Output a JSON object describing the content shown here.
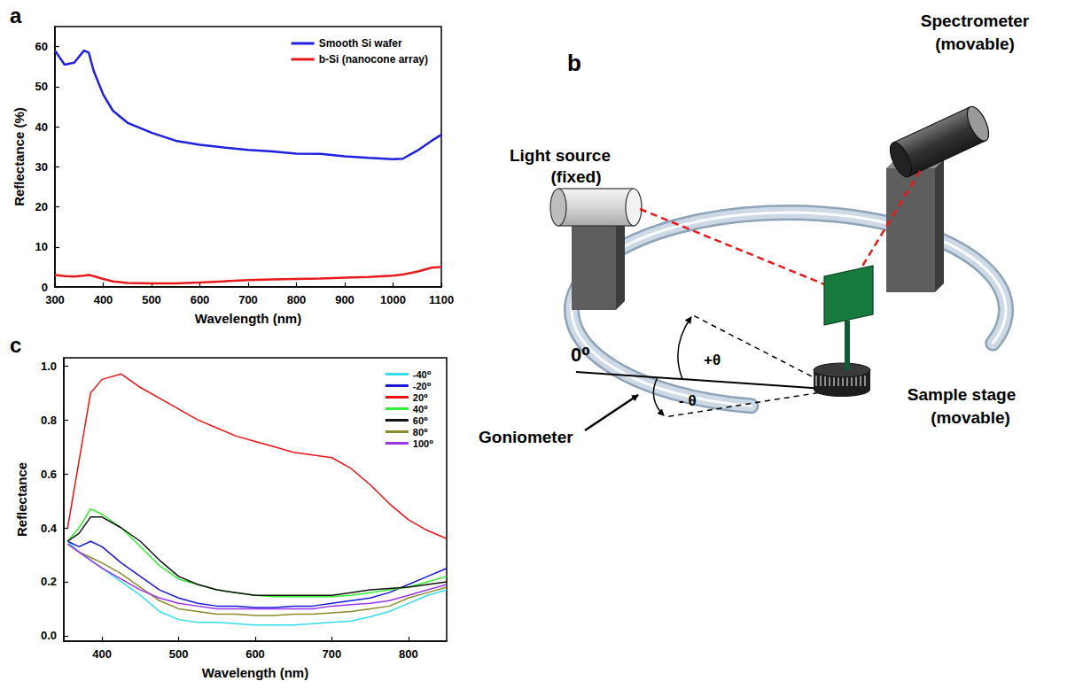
{
  "chart_data": [
    {
      "panel": "a",
      "type": "line",
      "x_label": "Wavelength (nm)",
      "y_label": "Reflectance (%)",
      "x": [
        300,
        320,
        340,
        360,
        370,
        380,
        400,
        420,
        450,
        500,
        550,
        600,
        650,
        700,
        750,
        800,
        850,
        900,
        950,
        1000,
        1020,
        1050,
        1080,
        1100
      ],
      "series": [
        {
          "name": "Smooth Si wafer",
          "color": "#1f1fe0",
          "values": [
            59,
            55.5,
            56,
            59,
            58.5,
            54,
            48,
            44,
            41,
            38.5,
            36.5,
            35.5,
            34.8,
            34.2,
            33.8,
            33.3,
            33.2,
            32.6,
            32.2,
            31.9,
            32,
            34,
            36.5,
            38
          ]
        },
        {
          "name": "b-Si (nanocone array)",
          "color": "#e8191b",
          "values": [
            3,
            2.7,
            2.6,
            2.8,
            3.0,
            2.7,
            2.0,
            1.4,
            1.0,
            0.9,
            0.9,
            1.1,
            1.4,
            1.7,
            1.9,
            2.0,
            2.1,
            2.3,
            2.5,
            2.8,
            3.1,
            3.8,
            4.8,
            5.0
          ]
        }
      ],
      "xlim": [
        300,
        1100
      ],
      "xticks": [
        300,
        400,
        500,
        600,
        700,
        800,
        900,
        1000,
        1100
      ],
      "ylim": [
        0,
        65
      ],
      "yticks": [
        0,
        10,
        20,
        30,
        40,
        50,
        60
      ],
      "grid": false,
      "legend": "upper right"
    },
    {
      "panel": "c",
      "type": "line",
      "x_label": "Wavelength (nm)",
      "y_label": "Reflectance",
      "x": [
        355,
        370,
        385,
        400,
        425,
        450,
        475,
        500,
        525,
        550,
        575,
        600,
        625,
        650,
        675,
        700,
        725,
        750,
        775,
        800,
        825,
        850
      ],
      "series": [
        {
          "name": "-40⁰",
          "color": "#33ddee",
          "values": [
            0.35,
            0.31,
            0.28,
            0.25,
            0.2,
            0.15,
            0.09,
            0.06,
            0.05,
            0.05,
            0.045,
            0.04,
            0.04,
            0.04,
            0.045,
            0.05,
            0.055,
            0.07,
            0.09,
            0.12,
            0.15,
            0.17
          ]
        },
        {
          "name": "-20⁰",
          "color": "#1818d8",
          "values": [
            0.35,
            0.33,
            0.35,
            0.33,
            0.27,
            0.22,
            0.17,
            0.14,
            0.12,
            0.11,
            0.11,
            0.105,
            0.105,
            0.11,
            0.11,
            0.12,
            0.13,
            0.14,
            0.16,
            0.19,
            0.22,
            0.25
          ]
        },
        {
          "name": "20⁰",
          "color": "#ee1111",
          "values": [
            0.4,
            0.65,
            0.9,
            0.95,
            0.97,
            0.92,
            0.88,
            0.84,
            0.8,
            0.77,
            0.74,
            0.72,
            0.7,
            0.68,
            0.67,
            0.66,
            0.62,
            0.56,
            0.49,
            0.43,
            0.39,
            0.36
          ]
        },
        {
          "name": "40⁰",
          "color": "#33ee33",
          "values": [
            0.35,
            0.4,
            0.47,
            0.45,
            0.4,
            0.33,
            0.26,
            0.21,
            0.19,
            0.17,
            0.16,
            0.15,
            0.145,
            0.145,
            0.145,
            0.145,
            0.15,
            0.16,
            0.17,
            0.18,
            0.2,
            0.22
          ]
        },
        {
          "name": "60⁰",
          "color": "#111111",
          "values": [
            0.35,
            0.38,
            0.44,
            0.44,
            0.4,
            0.35,
            0.28,
            0.22,
            0.19,
            0.17,
            0.16,
            0.15,
            0.15,
            0.15,
            0.15,
            0.15,
            0.16,
            0.17,
            0.175,
            0.18,
            0.19,
            0.2
          ]
        },
        {
          "name": "80⁰",
          "color": "#8b8b2b",
          "values": [
            0.34,
            0.31,
            0.29,
            0.27,
            0.23,
            0.18,
            0.13,
            0.1,
            0.09,
            0.08,
            0.08,
            0.075,
            0.075,
            0.08,
            0.08,
            0.085,
            0.09,
            0.1,
            0.11,
            0.14,
            0.16,
            0.18
          ]
        },
        {
          "name": "100⁰",
          "color": "#9933ee",
          "values": [
            0.34,
            0.31,
            0.28,
            0.25,
            0.21,
            0.17,
            0.14,
            0.12,
            0.11,
            0.1,
            0.1,
            0.1,
            0.1,
            0.1,
            0.1,
            0.11,
            0.115,
            0.12,
            0.13,
            0.15,
            0.17,
            0.19
          ]
        }
      ],
      "xlim": [
        350,
        850
      ],
      "xticks": [
        400,
        500,
        600,
        700,
        800
      ],
      "ylim": [
        -0.02,
        1.03
      ],
      "yticks": [
        {
          "value": 0,
          "label": "0.0"
        },
        0.2,
        0.4,
        0.6,
        0.8,
        {
          "value": 1,
          "label": "1.0"
        }
      ],
      "grid": false,
      "legend": "upper right"
    }
  ],
  "diagram": {
    "panel": "b",
    "light_source": [
      "Light source",
      "(fixed)"
    ],
    "spectrometer": [
      "Spectrometer",
      "(movable)"
    ],
    "sample_stage": [
      "Sample stage",
      "(movable)"
    ],
    "goniometer": "Goniometer",
    "angle_zero": "0⁰",
    "angle_plus": "+θ",
    "angle_minus": "- θ"
  }
}
